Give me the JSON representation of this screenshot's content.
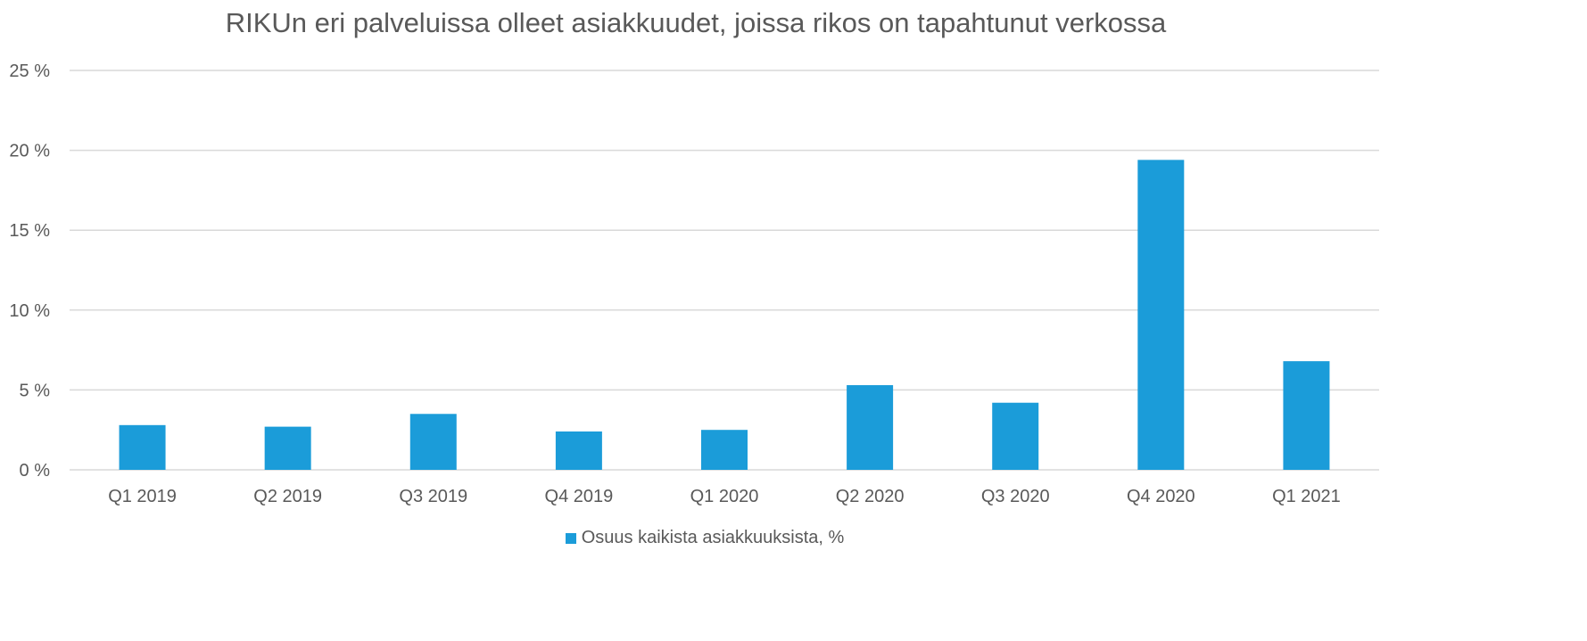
{
  "chart_data": {
    "type": "bar",
    "title": "RIKUn eri palveluissa olleet asiakkuudet, joissa rikos on tapahtunut verkossa",
    "categories": [
      "Q1 2019",
      "Q2 2019",
      "Q3 2019",
      "Q4 2019",
      "Q1 2020",
      "Q2 2020",
      "Q3 2020",
      "Q4 2020",
      "Q1 2021"
    ],
    "series": [
      {
        "name": "Osuus kaikista asiakkuuksista, %",
        "values": [
          2.8,
          2.7,
          3.5,
          2.4,
          2.5,
          5.3,
          4.2,
          19.4,
          6.8
        ]
      }
    ],
    "ylim": [
      0,
      25
    ],
    "yticks": [
      0,
      5,
      10,
      15,
      20,
      25
    ],
    "ytick_labels": [
      "0 %",
      "5 %",
      "10 %",
      "15 %",
      "20 %",
      "25 %"
    ],
    "xlabel": "",
    "ylabel": "",
    "grid": true,
    "legend_position": "bottom-center",
    "colors": {
      "bar": "#1b9cd9",
      "grid": "#d9d9d9",
      "text": "#595959"
    }
  }
}
